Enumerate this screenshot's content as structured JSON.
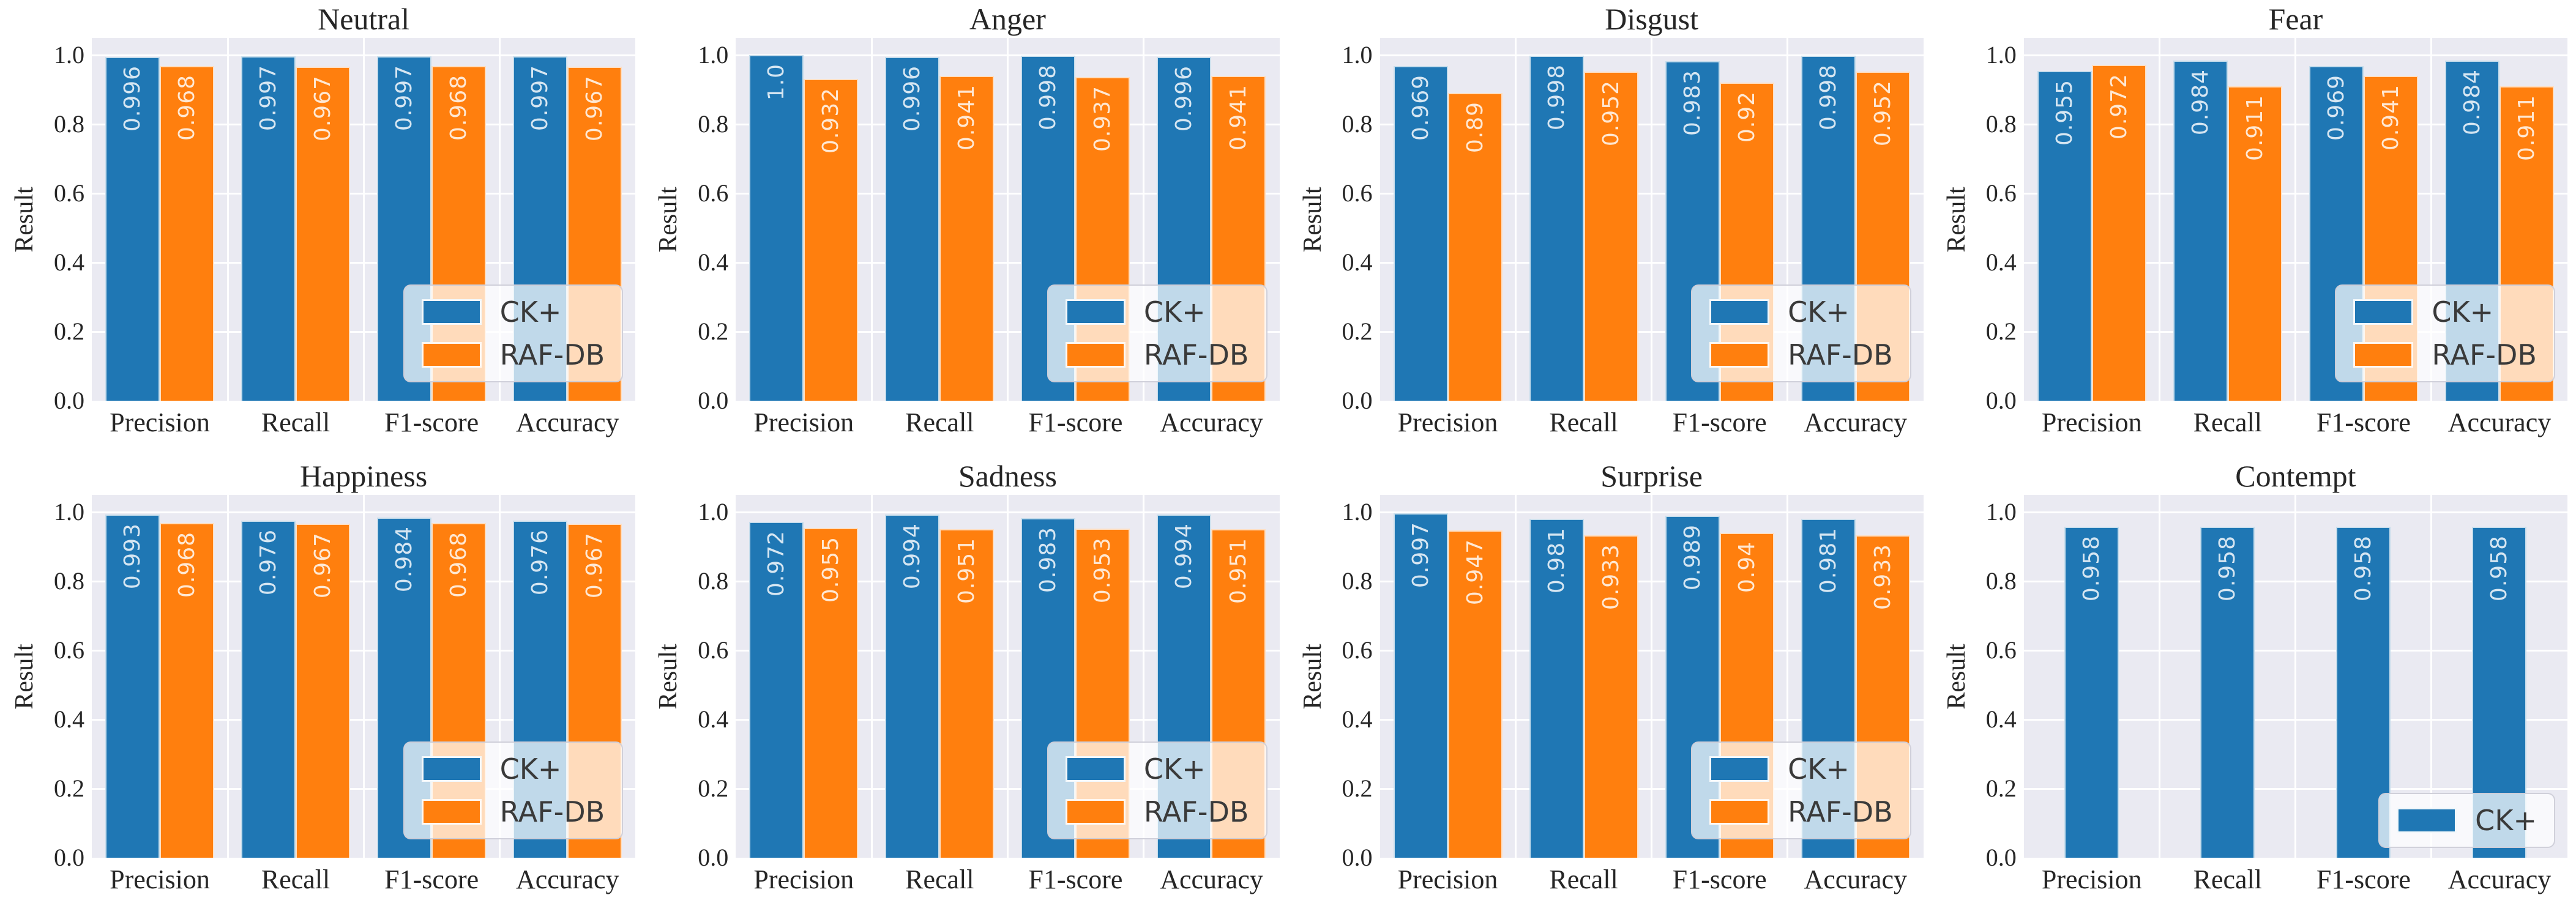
{
  "figure": {
    "background": "#ffffff",
    "plot_background": "#eaeaf2",
    "gridline_color": "#ffffff",
    "text_color": "#262626",
    "series_colors": {
      "CK+": "#1f77b4",
      "RAF-DB": "#ff7f0e"
    },
    "ylabel": "Result",
    "yticks": [
      "0.0",
      "0.2",
      "0.4",
      "0.6",
      "0.8",
      "1.0"
    ],
    "categories": [
      "Precision",
      "Recall",
      "F1-score",
      "Accuracy"
    ],
    "legend_position": "lower right"
  },
  "chart_data": [
    {
      "type": "bar",
      "title": "Neutral",
      "xlabel": "",
      "ylabel": "Result",
      "ylim": [
        0,
        1.05
      ],
      "grid": true,
      "legend_position": "lower right",
      "categories": [
        "Precision",
        "Recall",
        "F1-score",
        "Accuracy"
      ],
      "series": [
        {
          "name": "CK+",
          "color": "#1f77b4",
          "values": [
            0.996,
            0.997,
            0.997,
            0.997
          ],
          "labels": [
            "0.996",
            "0.997",
            "0.997",
            "0.997"
          ]
        },
        {
          "name": "RAF-DB",
          "color": "#ff7f0e",
          "values": [
            0.968,
            0.967,
            0.968,
            0.967
          ],
          "labels": [
            "0.968",
            "0.967",
            "0.968",
            "0.967"
          ]
        }
      ]
    },
    {
      "type": "bar",
      "title": "Anger",
      "xlabel": "",
      "ylabel": "Result",
      "ylim": [
        0,
        1.05
      ],
      "grid": true,
      "legend_position": "lower right",
      "categories": [
        "Precision",
        "Recall",
        "F1-score",
        "Accuracy"
      ],
      "series": [
        {
          "name": "CK+",
          "color": "#1f77b4",
          "values": [
            1.0,
            0.996,
            0.998,
            0.996
          ],
          "labels": [
            "1.0",
            "0.996",
            "0.998",
            "0.996"
          ]
        },
        {
          "name": "RAF-DB",
          "color": "#ff7f0e",
          "values": [
            0.932,
            0.941,
            0.937,
            0.941
          ],
          "labels": [
            "0.932",
            "0.941",
            "0.937",
            "0.941"
          ]
        }
      ]
    },
    {
      "type": "bar",
      "title": "Disgust",
      "xlabel": "",
      "ylabel": "Result",
      "ylim": [
        0,
        1.05
      ],
      "grid": true,
      "legend_position": "lower right",
      "categories": [
        "Precision",
        "Recall",
        "F1-score",
        "Accuracy"
      ],
      "series": [
        {
          "name": "CK+",
          "color": "#1f77b4",
          "values": [
            0.969,
            0.998,
            0.983,
            0.998
          ],
          "labels": [
            "0.969",
            "0.998",
            "0.983",
            "0.998"
          ]
        },
        {
          "name": "RAF-DB",
          "color": "#ff7f0e",
          "values": [
            0.89,
            0.952,
            0.92,
            0.952
          ],
          "labels": [
            "0.89",
            "0.952",
            "0.92",
            "0.952"
          ]
        }
      ]
    },
    {
      "type": "bar",
      "title": "Fear",
      "xlabel": "",
      "ylabel": "Result",
      "ylim": [
        0,
        1.05
      ],
      "grid": true,
      "legend_position": "lower right",
      "categories": [
        "Precision",
        "Recall",
        "F1-score",
        "Accuracy"
      ],
      "series": [
        {
          "name": "CK+",
          "color": "#1f77b4",
          "values": [
            0.955,
            0.984,
            0.969,
            0.984
          ],
          "labels": [
            "0.955",
            "0.984",
            "0.969",
            "0.984"
          ]
        },
        {
          "name": "RAF-DB",
          "color": "#ff7f0e",
          "values": [
            0.972,
            0.911,
            0.941,
            0.911
          ],
          "labels": [
            "0.972",
            "0.911",
            "0.941",
            "0.911"
          ]
        }
      ]
    },
    {
      "type": "bar",
      "title": "Happiness",
      "xlabel": "",
      "ylabel": "Result",
      "ylim": [
        0,
        1.05
      ],
      "grid": true,
      "legend_position": "lower right",
      "categories": [
        "Precision",
        "Recall",
        "F1-score",
        "Accuracy"
      ],
      "series": [
        {
          "name": "CK+",
          "color": "#1f77b4",
          "values": [
            0.993,
            0.976,
            0.984,
            0.976
          ],
          "labels": [
            "0.993",
            "0.976",
            "0.984",
            "0.976"
          ]
        },
        {
          "name": "RAF-DB",
          "color": "#ff7f0e",
          "values": [
            0.968,
            0.967,
            0.968,
            0.967
          ],
          "labels": [
            "0.968",
            "0.967",
            "0.968",
            "0.967"
          ]
        }
      ]
    },
    {
      "type": "bar",
      "title": "Sadness",
      "xlabel": "",
      "ylabel": "Result",
      "ylim": [
        0,
        1.05
      ],
      "grid": true,
      "legend_position": "lower right",
      "categories": [
        "Precision",
        "Recall",
        "F1-score",
        "Accuracy"
      ],
      "series": [
        {
          "name": "CK+",
          "color": "#1f77b4",
          "values": [
            0.972,
            0.994,
            0.983,
            0.994
          ],
          "labels": [
            "0.972",
            "0.994",
            "0.983",
            "0.994"
          ]
        },
        {
          "name": "RAF-DB",
          "color": "#ff7f0e",
          "values": [
            0.955,
            0.951,
            0.953,
            0.951
          ],
          "labels": [
            "0.955",
            "0.951",
            "0.953",
            "0.951"
          ]
        }
      ]
    },
    {
      "type": "bar",
      "title": "Surprise",
      "xlabel": "",
      "ylabel": "Result",
      "ylim": [
        0,
        1.05
      ],
      "grid": true,
      "legend_position": "lower right",
      "categories": [
        "Precision",
        "Recall",
        "F1-score",
        "Accuracy"
      ],
      "series": [
        {
          "name": "CK+",
          "color": "#1f77b4",
          "values": [
            0.997,
            0.981,
            0.989,
            0.981
          ],
          "labels": [
            "0.997",
            "0.981",
            "0.989",
            "0.981"
          ]
        },
        {
          "name": "RAF-DB",
          "color": "#ff7f0e",
          "values": [
            0.947,
            0.933,
            0.94,
            0.933
          ],
          "labels": [
            "0.947",
            "0.933",
            "0.94",
            "0.933"
          ]
        }
      ]
    },
    {
      "type": "bar",
      "title": "Contempt",
      "xlabel": "",
      "ylabel": "Result",
      "ylim": [
        0,
        1.05
      ],
      "grid": true,
      "legend_position": "lower right",
      "categories": [
        "Precision",
        "Recall",
        "F1-score",
        "Accuracy"
      ],
      "series": [
        {
          "name": "CK+",
          "color": "#1f77b4",
          "values": [
            0.958,
            0.958,
            0.958,
            0.958
          ],
          "labels": [
            "0.958",
            "0.958",
            "0.958",
            "0.958"
          ]
        }
      ]
    }
  ]
}
